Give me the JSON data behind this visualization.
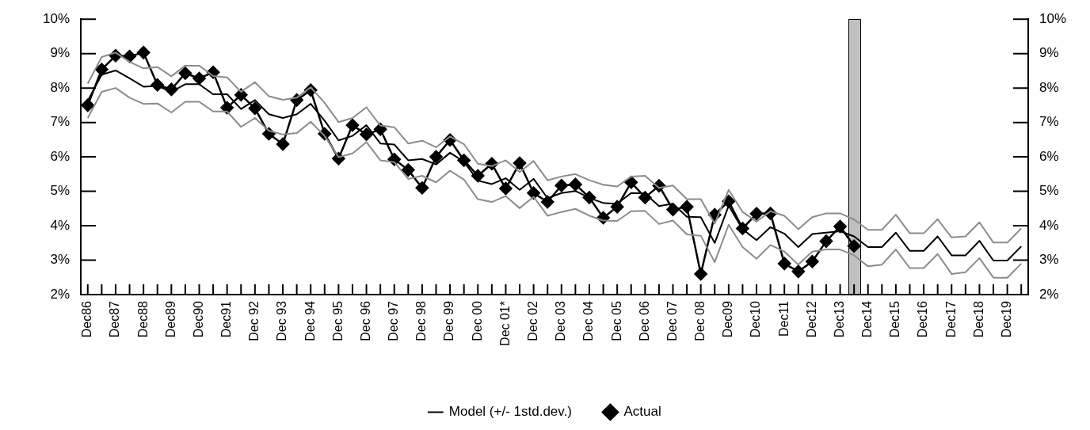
{
  "chart_data": {
    "type": "line",
    "categories": [
      "Dec86",
      null,
      "Dec87",
      null,
      "Dec88",
      null,
      "Dec89",
      null,
      "Dec90",
      null,
      "Dec91",
      null,
      "Dec 92",
      null,
      "Dec 93",
      null,
      "Dec 94",
      null,
      "Dec 95",
      null,
      "Dec 96",
      null,
      "Dec 97",
      null,
      "Dec 98",
      null,
      "Dec 99",
      null,
      "Dec 00",
      null,
      "Dec 01*",
      null,
      "Dec 02",
      null,
      "Dec 03",
      null,
      "Dec 04",
      null,
      "Dec 05",
      null,
      "Dec 06",
      null,
      "Dec 07",
      null,
      "Dec 08",
      null,
      "Dec09",
      null,
      "Dec10",
      null,
      "Dec11",
      null,
      "Dec12",
      null,
      "Dec13",
      null,
      "Dec14",
      null,
      "Dec15",
      null,
      "Dec16",
      null,
      "Dec17",
      null,
      "Dec18",
      null,
      "Dec19",
      null
    ],
    "ylim": [
      2,
      10
    ],
    "yticks": [
      {
        "value": 2,
        "label": "2%"
      },
      {
        "value": 3,
        "label": "3%"
      },
      {
        "value": 4,
        "label": "4%"
      },
      {
        "value": 5,
        "label": "5%"
      },
      {
        "value": 6,
        "label": "6%"
      },
      {
        "value": 7,
        "label": "7%"
      },
      {
        "value": 8,
        "label": "8%"
      },
      {
        "value": 9,
        "label": "9%"
      },
      {
        "value": 10,
        "label": "10%"
      }
    ],
    "y2lim": [
      2,
      10
    ],
    "y2ticks": [
      {
        "value": 2,
        "label": "2%"
      },
      {
        "value": 3,
        "label": "3%"
      },
      {
        "value": 4,
        "label": "4%"
      },
      {
        "value": 5,
        "label": "5%"
      },
      {
        "value": 6,
        "label": "6%"
      },
      {
        "value": 7,
        "label": "7%"
      },
      {
        "value": 8,
        "label": "8%"
      },
      {
        "value": 9,
        "label": "9%"
      },
      {
        "value": 10,
        "label": "10%"
      }
    ],
    "legend": "bottom",
    "series": [
      {
        "name": "Model (+/- 1std.dev.)",
        "color": "#000000",
        "marker": "none",
        "values": [
          7.63,
          8.39,
          8.51,
          8.28,
          8.04,
          8.06,
          7.89,
          8.11,
          8.11,
          7.82,
          7.82,
          7.39,
          7.65,
          7.24,
          7.13,
          7.24,
          7.54,
          7.05,
          6.48,
          6.61,
          6.92,
          6.39,
          6.36,
          5.9,
          5.94,
          5.78,
          6.12,
          5.86,
          5.31,
          5.21,
          5.38,
          5.04,
          5.36,
          4.8,
          4.95,
          5.01,
          4.81,
          4.66,
          4.64,
          4.95,
          4.94,
          4.57,
          4.64,
          4.26,
          4.25,
          3.5,
          4.58,
          3.9,
          3.58,
          3.96,
          3.77,
          3.38,
          3.76,
          3.8,
          3.84,
          3.69,
          3.38,
          3.38,
          3.8,
          3.27,
          3.27,
          3.69,
          3.14,
          3.14,
          3.56,
          2.99,
          2.99,
          3.4
        ]
      },
      {
        "color": "#8c8c8c",
        "marker": "none",
        "values": [
          8.13,
          8.9,
          9.03,
          8.76,
          8.57,
          8.61,
          8.34,
          8.65,
          8.65,
          8.35,
          8.31,
          7.89,
          8.17,
          7.76,
          7.66,
          7.72,
          8.02,
          7.57,
          7.01,
          7.13,
          7.44,
          6.91,
          6.86,
          6.39,
          6.47,
          6.28,
          6.59,
          6.37,
          5.8,
          5.73,
          5.9,
          5.56,
          5.88,
          5.32,
          5.43,
          5.5,
          5.32,
          5.19,
          5.14,
          5.43,
          5.45,
          5.1,
          5.17,
          4.77,
          4.77,
          4.06,
          5.04,
          4.4,
          4.12,
          4.42,
          4.29,
          3.9,
          4.25,
          4.36,
          4.36,
          4.18,
          3.88,
          3.88,
          4.32,
          3.78,
          3.78,
          4.19,
          3.66,
          3.69,
          4.1,
          3.51,
          3.51,
          3.92
        ]
      },
      {
        "color": "#8c8c8c",
        "marker": "none",
        "values": [
          7.13,
          7.89,
          8.0,
          7.72,
          7.54,
          7.55,
          7.29,
          7.6,
          7.6,
          7.32,
          7.32,
          6.87,
          7.13,
          6.76,
          6.65,
          6.69,
          7.02,
          6.61,
          5.99,
          6.1,
          6.43,
          5.9,
          5.85,
          5.36,
          5.45,
          5.26,
          5.6,
          5.34,
          4.77,
          4.69,
          4.86,
          4.51,
          4.84,
          4.29,
          4.4,
          4.49,
          4.29,
          4.15,
          4.14,
          4.42,
          4.43,
          4.05,
          4.15,
          3.75,
          3.71,
          2.94,
          4.03,
          3.38,
          3.04,
          3.44,
          3.25,
          2.87,
          3.25,
          3.31,
          3.31,
          3.14,
          2.82,
          2.87,
          3.31,
          2.77,
          2.77,
          3.18,
          2.6,
          2.65,
          3.06,
          2.49,
          2.49,
          2.9
        ]
      },
      {
        "name": "Actual",
        "color": "#000000",
        "marker": "diamond",
        "values": [
          7.5,
          8.54,
          8.94,
          8.92,
          9.03,
          8.09,
          7.96,
          8.43,
          8.28,
          8.46,
          7.43,
          7.8,
          7.41,
          6.67,
          6.37,
          7.65,
          7.94,
          6.67,
          5.95,
          6.92,
          6.65,
          6.8,
          5.93,
          5.62,
          5.1,
          6.0,
          6.49,
          5.9,
          5.45,
          5.8,
          5.08,
          5.82,
          4.95,
          4.69,
          5.17,
          5.2,
          4.82,
          4.23,
          4.55,
          5.26,
          4.82,
          5.16,
          4.47,
          4.55,
          2.6,
          4.32,
          4.71,
          3.92,
          4.35,
          4.36,
          2.9,
          2.67,
          2.96,
          3.55,
          3.98,
          3.41,
          null,
          null,
          null,
          null,
          null,
          null,
          null,
          null,
          null,
          null,
          null,
          null
        ]
      }
    ]
  }
}
